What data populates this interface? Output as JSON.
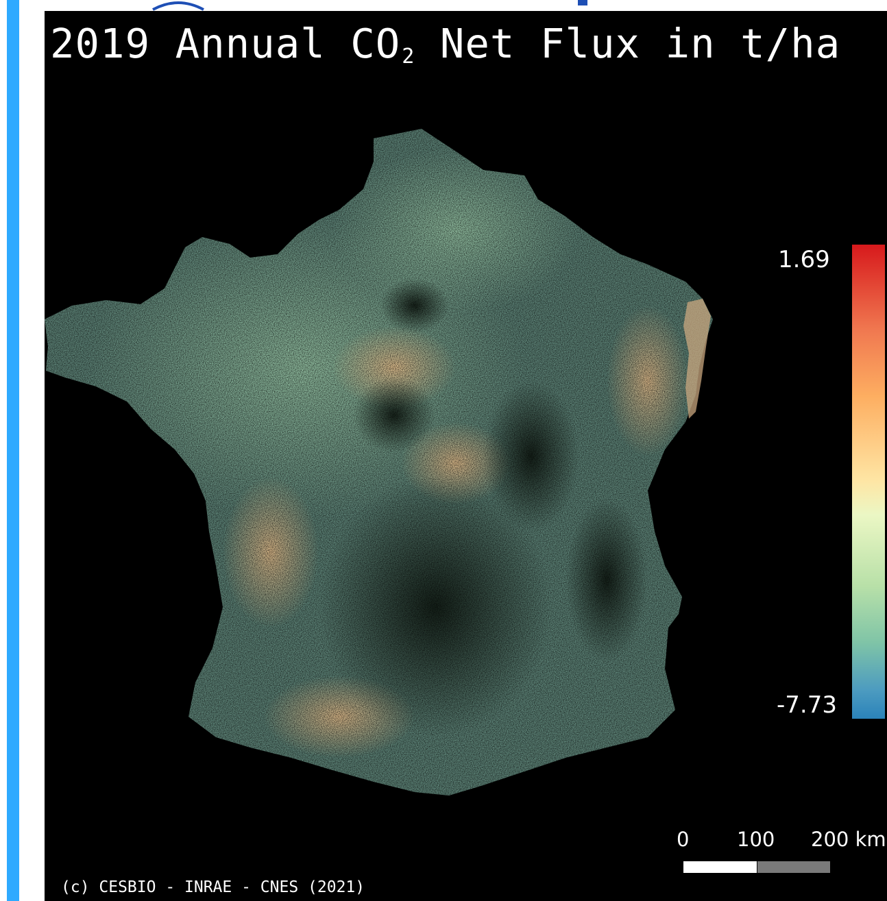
{
  "title": {
    "prefix": "2019 Annual CO",
    "subscript": "2",
    "suffix": " Net Flux in t/ha"
  },
  "colorbar": {
    "max_label": "1.69",
    "min_label": "-7.73",
    "max_value": 1.69,
    "min_value": -7.73,
    "colors": [
      "#d7191c",
      "#fdae61",
      "#ffffbf",
      "#abdda4",
      "#2b83ba"
    ]
  },
  "scale_bar": {
    "labels": [
      "0",
      "100",
      "200 km"
    ]
  },
  "credit": "(c) CESBIO - INRAE - CNES (2021)",
  "colors": {
    "background": "#000000",
    "accent": "#2eaaff"
  }
}
